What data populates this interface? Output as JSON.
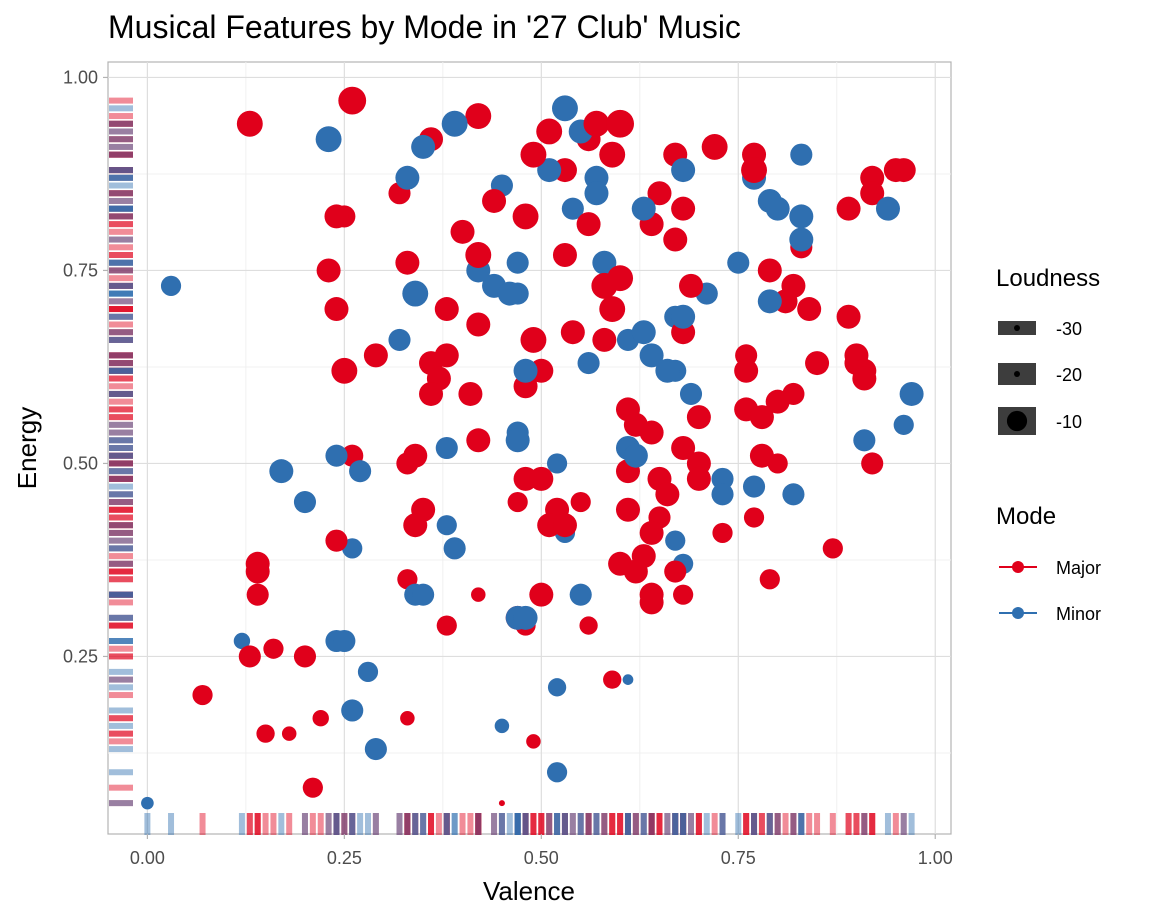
{
  "chart_data": {
    "type": "scatter",
    "title": "Musical Features by Mode in '27 Club' Music",
    "xlabel": "Valence",
    "ylabel": "Energy",
    "xlim": [
      -0.05,
      1.02
    ],
    "ylim": [
      0.02,
      1.02
    ],
    "x_ticks": [
      0.0,
      0.25,
      0.5,
      0.75,
      1.0
    ],
    "x_tick_labels": [
      "0.00",
      "0.25",
      "0.50",
      "0.75",
      "1.00"
    ],
    "y_ticks": [
      0.25,
      0.5,
      0.75,
      1.0
    ],
    "y_tick_labels": [
      "0.25",
      "0.50",
      "0.75",
      "1.00"
    ],
    "grid": true,
    "rug": true,
    "colors": {
      "Major": "#e0001b",
      "Minor": "#2f6fb0"
    },
    "legends": [
      {
        "title": "Loudness",
        "type": "size",
        "entries": [
          {
            "label": "-30",
            "value": -30
          },
          {
            "label": "-20",
            "value": -20
          },
          {
            "label": "-10",
            "value": -10
          }
        ]
      },
      {
        "title": "Mode",
        "type": "color",
        "entries": [
          {
            "label": "Major",
            "color": "#e0001b"
          },
          {
            "label": "Minor",
            "color": "#2f6fb0"
          }
        ]
      }
    ],
    "series": [
      {
        "name": "Major",
        "color": "#e0001b",
        "points": [
          [
            0.13,
            0.94,
            -7
          ],
          [
            0.26,
            0.97,
            -6
          ],
          [
            0.42,
            0.95,
            -7
          ],
          [
            0.36,
            0.92,
            -8
          ],
          [
            0.32,
            0.85,
            -9
          ],
          [
            0.24,
            0.82,
            -8
          ],
          [
            0.25,
            0.82,
            -9
          ],
          [
            0.23,
            0.75,
            -8
          ],
          [
            0.24,
            0.7,
            -8
          ],
          [
            0.33,
            0.76,
            -8
          ],
          [
            0.25,
            0.62,
            -7
          ],
          [
            0.29,
            0.64,
            -8
          ],
          [
            0.4,
            0.8,
            -8
          ],
          [
            0.44,
            0.84,
            -8
          ],
          [
            0.42,
            0.77,
            -7
          ],
          [
            0.48,
            0.82,
            -7
          ],
          [
            0.49,
            0.9,
            -7
          ],
          [
            0.51,
            0.93,
            -7
          ],
          [
            0.53,
            0.88,
            -8
          ],
          [
            0.56,
            0.92,
            -8
          ],
          [
            0.57,
            0.94,
            -7
          ],
          [
            0.59,
            0.9,
            -7
          ],
          [
            0.6,
            0.94,
            -6
          ],
          [
            0.53,
            0.77,
            -8
          ],
          [
            0.56,
            0.81,
            -8
          ],
          [
            0.58,
            0.73,
            -7
          ],
          [
            0.59,
            0.7,
            -7
          ],
          [
            0.6,
            0.74,
            -7
          ],
          [
            0.58,
            0.66,
            -8
          ],
          [
            0.54,
            0.67,
            -8
          ],
          [
            0.49,
            0.66,
            -7
          ],
          [
            0.5,
            0.62,
            -8
          ],
          [
            0.48,
            0.6,
            -8
          ],
          [
            0.42,
            0.68,
            -8
          ],
          [
            0.38,
            0.7,
            -8
          ],
          [
            0.36,
            0.63,
            -8
          ],
          [
            0.38,
            0.64,
            -8
          ],
          [
            0.37,
            0.61,
            -8
          ],
          [
            0.36,
            0.59,
            -8
          ],
          [
            0.41,
            0.59,
            -8
          ],
          [
            0.42,
            0.53,
            -8
          ],
          [
            0.34,
            0.51,
            -8
          ],
          [
            0.33,
            0.5,
            -9
          ],
          [
            0.35,
            0.44,
            -8
          ],
          [
            0.34,
            0.42,
            -8
          ],
          [
            0.26,
            0.51,
            -9
          ],
          [
            0.24,
            0.4,
            -9
          ],
          [
            0.47,
            0.45,
            -10
          ],
          [
            0.48,
            0.48,
            -8
          ],
          [
            0.5,
            0.48,
            -8
          ],
          [
            0.52,
            0.44,
            -8
          ],
          [
            0.51,
            0.42,
            -8
          ],
          [
            0.53,
            0.42,
            -8
          ],
          [
            0.55,
            0.45,
            -10
          ],
          [
            0.61,
            0.57,
            -8
          ],
          [
            0.62,
            0.55,
            -8
          ],
          [
            0.64,
            0.54,
            -8
          ],
          [
            0.61,
            0.49,
            -8
          ],
          [
            0.61,
            0.44,
            -8
          ],
          [
            0.64,
            0.41,
            -8
          ],
          [
            0.63,
            0.38,
            -8
          ],
          [
            0.62,
            0.36,
            -8
          ],
          [
            0.6,
            0.37,
            -8
          ],
          [
            0.65,
            0.48,
            -8
          ],
          [
            0.66,
            0.46,
            -8
          ],
          [
            0.65,
            0.43,
            -9
          ],
          [
            0.64,
            0.33,
            -8
          ],
          [
            0.64,
            0.32,
            -8
          ],
          [
            0.68,
            0.52,
            -8
          ],
          [
            0.7,
            0.5,
            -8
          ],
          [
            0.7,
            0.48,
            -8
          ],
          [
            0.7,
            0.56,
            -8
          ],
          [
            0.68,
            0.67,
            -8
          ],
          [
            0.69,
            0.73,
            -8
          ],
          [
            0.67,
            0.79,
            -8
          ],
          [
            0.68,
            0.83,
            -8
          ],
          [
            0.64,
            0.81,
            -8
          ],
          [
            0.65,
            0.85,
            -8
          ],
          [
            0.67,
            0.9,
            -8
          ],
          [
            0.72,
            0.91,
            -7
          ],
          [
            0.77,
            0.9,
            -8
          ],
          [
            0.77,
            0.88,
            -7
          ],
          [
            0.76,
            0.62,
            -8
          ],
          [
            0.76,
            0.64,
            -9
          ],
          [
            0.76,
            0.57,
            -8
          ],
          [
            0.78,
            0.56,
            -8
          ],
          [
            0.78,
            0.51,
            -8
          ],
          [
            0.8,
            0.5,
            -10
          ],
          [
            0.8,
            0.58,
            -8
          ],
          [
            0.82,
            0.59,
            -9
          ],
          [
            0.82,
            0.73,
            -8
          ],
          [
            0.79,
            0.75,
            -8
          ],
          [
            0.81,
            0.71,
            -8
          ],
          [
            0.83,
            0.78,
            -9
          ],
          [
            0.84,
            0.7,
            -8
          ],
          [
            0.85,
            0.63,
            -8
          ],
          [
            0.89,
            0.83,
            -8
          ],
          [
            0.89,
            0.69,
            -8
          ],
          [
            0.9,
            0.63,
            -8
          ],
          [
            0.9,
            0.64,
            -8
          ],
          [
            0.91,
            0.62,
            -8
          ],
          [
            0.91,
            0.61,
            -8
          ],
          [
            0.92,
            0.5,
            -9
          ],
          [
            0.92,
            0.87,
            -8
          ],
          [
            0.92,
            0.85,
            -8
          ],
          [
            0.95,
            0.88,
            -8
          ],
          [
            0.96,
            0.88,
            -8
          ],
          [
            0.77,
            0.43,
            -10
          ],
          [
            0.73,
            0.41,
            -10
          ],
          [
            0.79,
            0.35,
            -10
          ],
          [
            0.87,
            0.39,
            -10
          ],
          [
            0.68,
            0.33,
            -10
          ],
          [
            0.67,
            0.36,
            -9
          ],
          [
            0.56,
            0.29,
            -11
          ],
          [
            0.5,
            0.33,
            -8
          ],
          [
            0.48,
            0.29,
            -10
          ],
          [
            0.47,
            0.3,
            -8
          ],
          [
            0.38,
            0.29,
            -10
          ],
          [
            0.42,
            0.33,
            -13
          ],
          [
            0.33,
            0.35,
            -10
          ],
          [
            0.14,
            0.37,
            -8
          ],
          [
            0.14,
            0.36,
            -8
          ],
          [
            0.14,
            0.33,
            -9
          ],
          [
            0.13,
            0.25,
            -9
          ],
          [
            0.16,
            0.26,
            -10
          ],
          [
            0.2,
            0.25,
            -9
          ],
          [
            0.07,
            0.2,
            -10
          ],
          [
            0.15,
            0.15,
            -11
          ],
          [
            0.18,
            0.15,
            -13
          ],
          [
            0.22,
            0.17,
            -12
          ],
          [
            0.33,
            0.17,
            -13
          ],
          [
            0.49,
            0.14,
            -13
          ],
          [
            0.21,
            0.08,
            -10
          ],
          [
            0.59,
            0.22,
            -11
          ],
          [
            0.45,
            0.06,
            -30
          ]
        ]
      },
      {
        "name": "Minor",
        "color": "#2f6fb0",
        "points": [
          [
            0.03,
            0.73,
            -10
          ],
          [
            0.53,
            0.96,
            -7
          ],
          [
            0.55,
            0.93,
            -8
          ],
          [
            0.39,
            0.94,
            -7
          ],
          [
            0.35,
            0.91,
            -8
          ],
          [
            0.23,
            0.92,
            -7
          ],
          [
            0.33,
            0.87,
            -8
          ],
          [
            0.45,
            0.86,
            -9
          ],
          [
            0.51,
            0.88,
            -8
          ],
          [
            0.57,
            0.87,
            -8
          ],
          [
            0.57,
            0.85,
            -8
          ],
          [
            0.54,
            0.83,
            -9
          ],
          [
            0.63,
            0.83,
            -8
          ],
          [
            0.68,
            0.88,
            -8
          ],
          [
            0.77,
            0.87,
            -8
          ],
          [
            0.79,
            0.84,
            -8
          ],
          [
            0.8,
            0.83,
            -8
          ],
          [
            0.83,
            0.82,
            -8
          ],
          [
            0.83,
            0.79,
            -8
          ],
          [
            0.83,
            0.9,
            -9
          ],
          [
            0.94,
            0.83,
            -8
          ],
          [
            0.75,
            0.76,
            -9
          ],
          [
            0.79,
            0.71,
            -8
          ],
          [
            0.71,
            0.72,
            -9
          ],
          [
            0.67,
            0.69,
            -9
          ],
          [
            0.68,
            0.69,
            -8
          ],
          [
            0.58,
            0.76,
            -8
          ],
          [
            0.47,
            0.76,
            -9
          ],
          [
            0.42,
            0.75,
            -8
          ],
          [
            0.44,
            0.73,
            -8
          ],
          [
            0.46,
            0.72,
            -8
          ],
          [
            0.47,
            0.72,
            -9
          ],
          [
            0.34,
            0.72,
            -7
          ],
          [
            0.32,
            0.66,
            -9
          ],
          [
            0.48,
            0.62,
            -8
          ],
          [
            0.56,
            0.63,
            -9
          ],
          [
            0.61,
            0.66,
            -9
          ],
          [
            0.63,
            0.67,
            -8
          ],
          [
            0.64,
            0.64,
            -8
          ],
          [
            0.66,
            0.62,
            -8
          ],
          [
            0.67,
            0.62,
            -9
          ],
          [
            0.69,
            0.59,
            -9
          ],
          [
            0.61,
            0.52,
            -8
          ],
          [
            0.62,
            0.51,
            -8
          ],
          [
            0.52,
            0.5,
            -10
          ],
          [
            0.47,
            0.54,
            -9
          ],
          [
            0.47,
            0.53,
            -8
          ],
          [
            0.38,
            0.52,
            -9
          ],
          [
            0.24,
            0.51,
            -9
          ],
          [
            0.27,
            0.49,
            -9
          ],
          [
            0.17,
            0.49,
            -8
          ],
          [
            0.2,
            0.45,
            -9
          ],
          [
            0.38,
            0.42,
            -10
          ],
          [
            0.39,
            0.39,
            -9
          ],
          [
            0.26,
            0.39,
            -10
          ],
          [
            0.34,
            0.33,
            -9
          ],
          [
            0.35,
            0.33,
            -9
          ],
          [
            0.53,
            0.41,
            -10
          ],
          [
            0.55,
            0.33,
            -9
          ],
          [
            0.67,
            0.4,
            -10
          ],
          [
            0.68,
            0.37,
            -10
          ],
          [
            0.73,
            0.48,
            -9
          ],
          [
            0.73,
            0.46,
            -9
          ],
          [
            0.77,
            0.47,
            -9
          ],
          [
            0.82,
            0.46,
            -9
          ],
          [
            0.91,
            0.53,
            -9
          ],
          [
            0.97,
            0.59,
            -8
          ],
          [
            0.96,
            0.55,
            -10
          ],
          [
            0.47,
            0.3,
            -8
          ],
          [
            0.48,
            0.3,
            -8
          ],
          [
            0.12,
            0.27,
            -12
          ],
          [
            0.24,
            0.27,
            -9
          ],
          [
            0.25,
            0.27,
            -9
          ],
          [
            0.28,
            0.23,
            -10
          ],
          [
            0.26,
            0.18,
            -9
          ],
          [
            0.29,
            0.13,
            -9
          ],
          [
            0.45,
            0.16,
            -13
          ],
          [
            0.52,
            0.21,
            -11
          ],
          [
            0.52,
            0.1,
            -10
          ],
          [
            0.61,
            0.22,
            -15
          ],
          [
            0.0,
            0.06,
            -14
          ]
        ]
      }
    ]
  }
}
